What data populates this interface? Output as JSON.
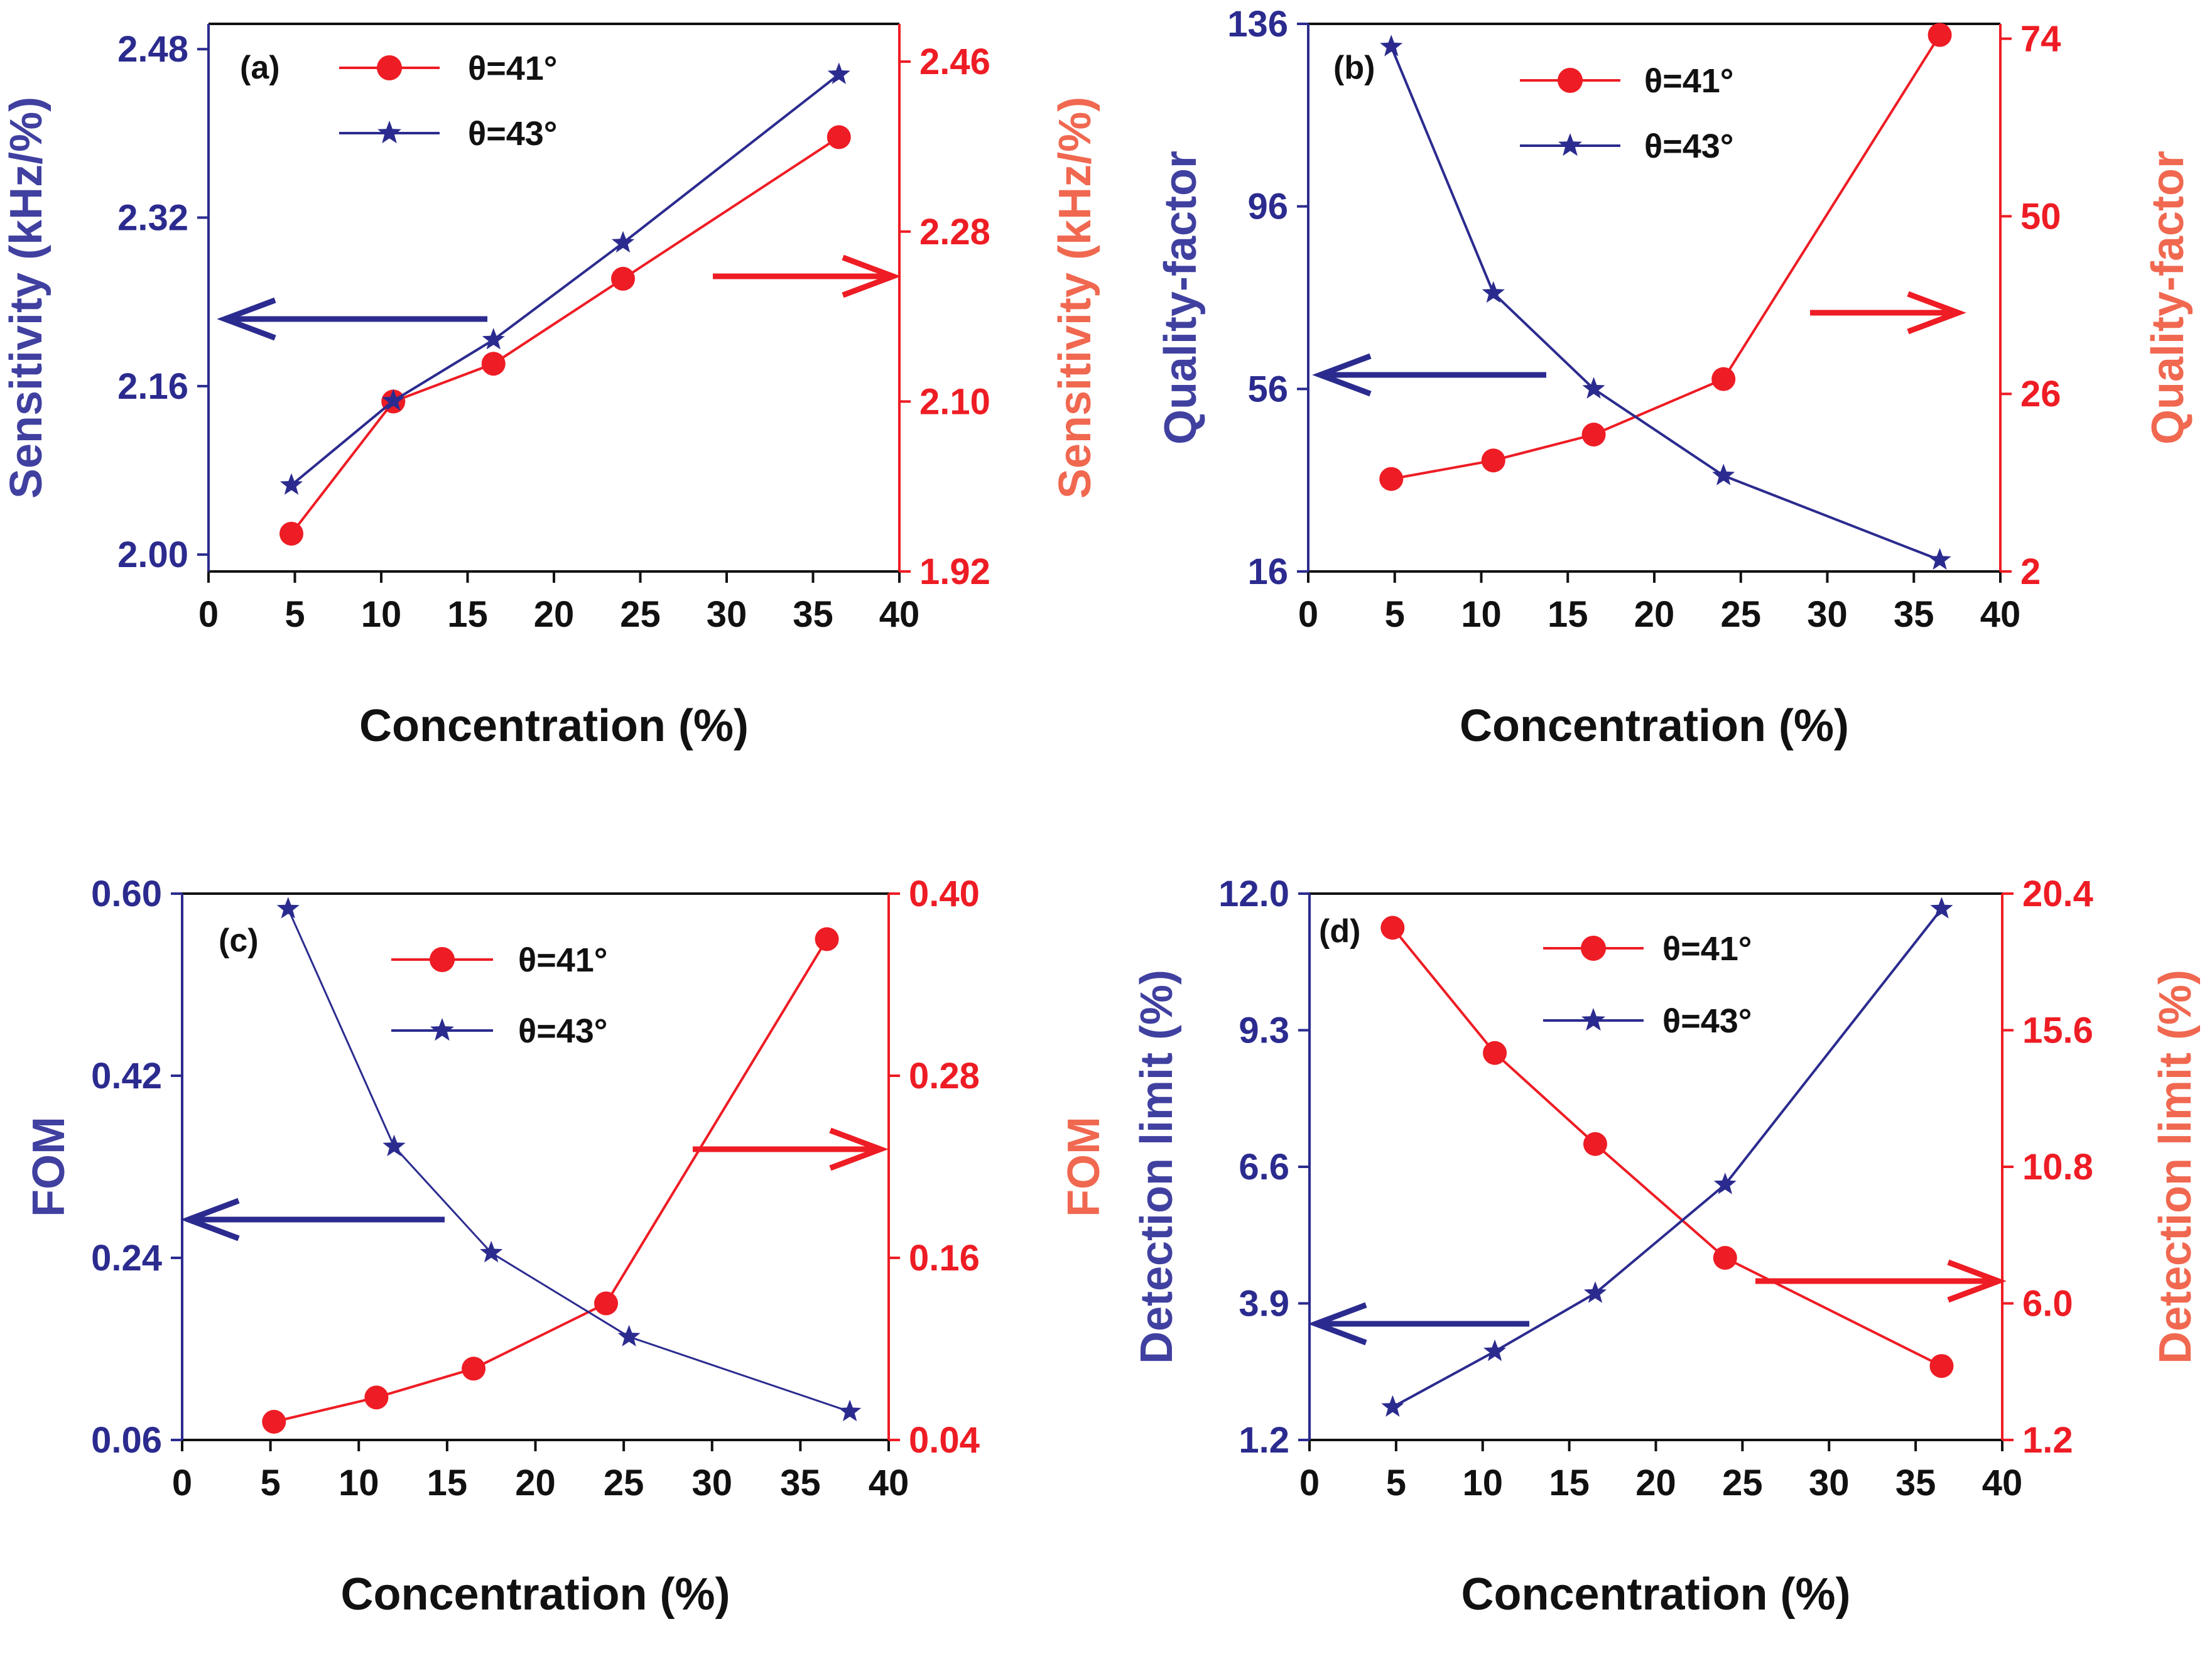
{
  "colors": {
    "blue": "#2b2b8f",
    "red": "#ee1c24",
    "axis_black": "#111111",
    "left_label_blue": "#4040a0",
    "right_label_salmon": "#f06850"
  },
  "chart_data": [
    {
      "type": "line",
      "panel": "(a)",
      "xlabel": "Concentration (%)",
      "ylabel_left": "Sensitivity (kHz/%)",
      "ylabel_right": "Sensitivity (kHz/%)",
      "xlim": [
        0,
        40
      ],
      "xticks": [
        "0",
        "5",
        "10",
        "15",
        "20",
        "25",
        "30",
        "35",
        "40"
      ],
      "ylim_left": [
        1.984,
        2.504
      ],
      "yticks_left": [
        "2.00",
        "2.16",
        "2.32",
        "2.48"
      ],
      "ylim_right": [
        1.92,
        2.5
      ],
      "yticks_right": [
        "1.92",
        "2.10",
        "2.28",
        "2.46"
      ],
      "series": [
        {
          "name": "θ=41°",
          "axis": "right",
          "marker": "circle",
          "x": [
            4.8,
            10.7,
            16.5,
            24.0,
            36.5
          ],
          "values": [
            1.96,
            2.1,
            2.14,
            2.23,
            2.38
          ]
        },
        {
          "name": "θ=43°",
          "axis": "left",
          "marker": "star",
          "x": [
            4.8,
            10.7,
            16.5,
            24.0,
            36.5
          ],
          "values": [
            2.066,
            2.146,
            2.204,
            2.296,
            2.456
          ]
        }
      ],
      "legend": [
        "θ=41°",
        "θ=43°"
      ],
      "annotations": [
        "left-pointing arrow (blue)",
        "right-pointing arrow (red)"
      ]
    },
    {
      "type": "line",
      "panel": "(b)",
      "xlabel": "Concentration (%)",
      "ylabel_left": "Quality-factor",
      "ylabel_right": "Quality-factor",
      "xlim": [
        0,
        40
      ],
      "xticks": [
        "0",
        "5",
        "10",
        "15",
        "20",
        "25",
        "30",
        "35",
        "40"
      ],
      "ylim_left": [
        16,
        136
      ],
      "yticks_left": [
        "16",
        "56",
        "96",
        "136"
      ],
      "ylim_right": [
        2,
        76
      ],
      "yticks_right": [
        "2",
        "26",
        "50",
        "74"
      ],
      "series": [
        {
          "name": "θ=41°",
          "axis": "right",
          "marker": "circle",
          "x": [
            4.8,
            10.7,
            16.5,
            24.0,
            36.5
          ],
          "values": [
            14.5,
            17.0,
            20.5,
            28.0,
            74.5
          ]
        },
        {
          "name": "θ=43°",
          "axis": "left",
          "marker": "star",
          "x": [
            4.8,
            10.7,
            16.5,
            24.0,
            36.5
          ],
          "values": [
            131,
            77,
            56,
            37,
            18.5
          ]
        }
      ],
      "legend": [
        "θ=41°",
        "θ=43°"
      ],
      "annotations": [
        "left-pointing arrow (blue)",
        "right-pointing arrow (red)"
      ]
    },
    {
      "type": "line",
      "panel": "(c)",
      "xlabel": "Concentration (%)",
      "ylabel_left": "FOM",
      "ylabel_right": "FOM",
      "xlim": [
        0,
        40
      ],
      "xticks": [
        "0",
        "5",
        "10",
        "15",
        "20",
        "25",
        "30",
        "35",
        "40"
      ],
      "ylim_left": [
        0.06,
        0.6
      ],
      "yticks_left": [
        "0.06",
        "0.24",
        "0.42",
        "0.60"
      ],
      "ylim_right": [
        0.04,
        0.4
      ],
      "yticks_right": [
        "0.04",
        "0.16",
        "0.28",
        "0.40"
      ],
      "series": [
        {
          "name": "θ=41°",
          "axis": "right",
          "marker": "circle",
          "x": [
            5.2,
            11.0,
            16.5,
            24.0,
            36.5
          ],
          "values": [
            0.052,
            0.068,
            0.087,
            0.13,
            0.37
          ]
        },
        {
          "name": "θ=43°",
          "axis": "left",
          "marker": "star",
          "x": [
            6.0,
            12.0,
            17.5,
            25.3,
            37.8
          ],
          "values": [
            0.585,
            0.35,
            0.245,
            0.162,
            0.088
          ]
        }
      ],
      "legend": [
        "θ=41°",
        "θ=43°"
      ],
      "annotations": [
        "left-pointing arrow (blue)",
        "right-pointing arrow (red)"
      ]
    },
    {
      "type": "line",
      "panel": "(d)",
      "xlabel": "Concentration (%)",
      "ylabel_left": "Detection limit (%)",
      "ylabel_right": "Detection limit (%)",
      "xlim": [
        0,
        40
      ],
      "xticks": [
        "0",
        "5",
        "10",
        "15",
        "20",
        "25",
        "30",
        "35",
        "40"
      ],
      "ylim_left": [
        1.2,
        12.0
      ],
      "yticks_left": [
        "1.2",
        "3.9",
        "6.6",
        "9.3",
        "12.0"
      ],
      "ylim_right": [
        1.2,
        20.4
      ],
      "yticks_right": [
        "1.2",
        "6.0",
        "10.8",
        "15.6",
        "20.4"
      ],
      "series": [
        {
          "name": "θ=41°",
          "axis": "right",
          "marker": "circle",
          "x": [
            4.8,
            10.7,
            16.5,
            24.0,
            36.5
          ],
          "values": [
            19.2,
            14.8,
            11.6,
            7.6,
            3.8
          ]
        },
        {
          "name": "θ=43°",
          "axis": "left",
          "marker": "star",
          "x": [
            4.8,
            10.7,
            16.5,
            24.0,
            36.5
          ],
          "values": [
            1.85,
            2.95,
            4.1,
            6.25,
            11.7
          ]
        }
      ],
      "legend": [
        "θ=41°",
        "θ=43°"
      ],
      "annotations": [
        "left-pointing arrow (blue)",
        "right-pointing arrow (red)"
      ]
    }
  ]
}
